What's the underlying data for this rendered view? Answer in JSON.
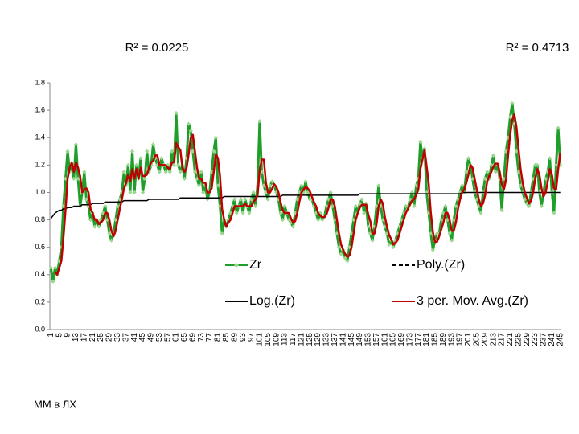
{
  "chart_data": {
    "type": "line",
    "annotations": [
      {
        "text": "R² = 0.0225"
      },
      {
        "text": "R² = 0.4713"
      }
    ],
    "footer": "ММ в ЛХ",
    "categories": [
      "1",
      null,
      null,
      null,
      "5",
      null,
      null,
      null,
      "9",
      null,
      null,
      null,
      "13",
      null,
      null,
      null,
      "17",
      null,
      null,
      null,
      "21",
      null,
      null,
      null,
      "25",
      null,
      null,
      null,
      "29",
      null,
      null,
      null,
      "33",
      null,
      null,
      null,
      "37",
      null,
      null,
      null,
      "41",
      null,
      null,
      null,
      "45",
      null,
      null,
      null,
      "49",
      null,
      null,
      null,
      "53",
      null,
      null,
      null,
      "57",
      null,
      null,
      null,
      "61",
      null,
      null,
      null,
      "65",
      null,
      null,
      null,
      "69",
      null,
      null,
      null,
      "73",
      null,
      null,
      null,
      "77",
      null,
      null,
      null,
      "81",
      null,
      null,
      null,
      "85",
      null,
      null,
      null,
      "89",
      null,
      null,
      null,
      "93",
      null,
      null,
      null,
      "97",
      null,
      null,
      null,
      "101",
      null,
      null,
      null,
      "105",
      null,
      null,
      null,
      "109",
      null,
      null,
      null,
      "113",
      null,
      null,
      null,
      "117",
      null,
      null,
      null,
      "121",
      null,
      null,
      null,
      "125",
      null,
      null,
      null,
      "129",
      null,
      null,
      null,
      "133",
      null,
      null,
      null,
      "137",
      null,
      null,
      null,
      "141",
      null,
      null,
      null,
      "145",
      null,
      null,
      null,
      "149",
      null,
      null,
      null,
      "153",
      null,
      null,
      null,
      "157",
      null,
      null,
      null,
      "161",
      null,
      null,
      null,
      "165",
      null,
      null,
      null,
      "169",
      null,
      null,
      null,
      "173",
      null,
      null,
      null,
      "177",
      null,
      null,
      null,
      "181",
      null,
      null,
      null,
      "185",
      null,
      null,
      null,
      "189",
      null,
      null,
      null,
      "193",
      null,
      null,
      null,
      "197",
      null,
      null,
      null,
      "201",
      null,
      null,
      null,
      "205",
      null,
      null,
      null,
      "209",
      null,
      null,
      null,
      "213",
      null,
      null,
      null,
      "217",
      null,
      null,
      null,
      "221",
      null,
      null,
      null,
      "225",
      null,
      null,
      null,
      "229",
      null,
      null,
      null,
      "233",
      null,
      null,
      null,
      "237",
      null,
      null,
      null,
      "241",
      null,
      null,
      null,
      "245"
    ],
    "series": [
      {
        "name": "Zr",
        "color": "#1f9e2a",
        "marker_color": "#9ad88e",
        "markers": true,
        "values": [
          0.45,
          0.35,
          0.45,
          0.4,
          0.5,
          0.6,
          0.9,
          1.1,
          1.3,
          1.15,
          1.2,
          1.1,
          1.35,
          1.1,
          0.9,
          1,
          1.15,
          0.95,
          0.9,
          0.8,
          0.85,
          0.75,
          0.8,
          0.75,
          0.8,
          0.85,
          0.9,
          0.8,
          0.7,
          0.65,
          0.7,
          0.8,
          0.9,
          0.95,
          1,
          1.15,
          1.05,
          1.2,
          1,
          1.3,
          1,
          1.2,
          1.1,
          1.25,
          1,
          1.1,
          1.3,
          1.15,
          1.2,
          1.35,
          1.25,
          1.2,
          1.15,
          1.25,
          1.2,
          1.15,
          1.2,
          1.15,
          1.3,
          1.2,
          1.58,
          1.2,
          1.15,
          1.2,
          1.1,
          1.25,
          1.5,
          1.45,
          1.3,
          1.15,
          1.1,
          1.05,
          1.15,
          1,
          1.05,
          0.95,
          1,
          1.15,
          1.3,
          1.4,
          1.05,
          0.9,
          0.7,
          0.8,
          0.75,
          0.8,
          0.85,
          0.9,
          0.95,
          0.85,
          0.9,
          0.95,
          0.85,
          0.95,
          0.9,
          0.85,
          0.95,
          1,
          0.9,
          1.05,
          1.52,
          1.15,
          1.05,
          1,
          0.95,
          1.05,
          1.08,
          1.05,
          1,
          0.95,
          0.85,
          0.8,
          0.9,
          0.85,
          0.8,
          0.78,
          0.75,
          0.85,
          0.95,
          1,
          1.05,
          1,
          1.08,
          1,
          0.95,
          0.95,
          0.9,
          0.85,
          0.8,
          0.85,
          0.8,
          0.82,
          0.9,
          0.95,
          1,
          0.9,
          0.8,
          0.7,
          0.6,
          0.55,
          0.58,
          0.52,
          0.5,
          0.6,
          0.7,
          0.8,
          0.9,
          0.85,
          0.92,
          0.95,
          0.85,
          0.92,
          0.75,
          0.7,
          0.65,
          0.75,
          0.9,
          1.05,
          0.9,
          0.8,
          0.75,
          0.7,
          0.62,
          0.65,
          0.6,
          0.65,
          0.7,
          0.75,
          0.8,
          0.85,
          0.9,
          0.88,
          0.95,
          1,
          0.9,
          1.05,
          1.1,
          1.37,
          1.25,
          1.32,
          1,
          0.85,
          0.7,
          0.58,
          0.65,
          0.7,
          0.7,
          0.8,
          0.85,
          0.9,
          0.8,
          0.7,
          0.65,
          0.8,
          0.9,
          0.95,
          1,
          1.05,
          1,
          1.15,
          1.25,
          1.2,
          1.1,
          1,
          0.95,
          0.9,
          0.85,
          1,
          1.1,
          1.15,
          1.1,
          1.2,
          1.27,
          1.15,
          1.2,
          1.1,
          0.87,
          1.1,
          1.3,
          1.4,
          1.55,
          1.65,
          1.5,
          1.3,
          1.15,
          1.05,
          1,
          0.95,
          0.92,
          0.9,
          1,
          1.1,
          1.2,
          1.2,
          1,
          0.9,
          1,
          1.1,
          1.15,
          1.25,
          1,
          0.85,
          1.2,
          1.47,
          1.2
        ]
      },
      {
        "name": "Poly.(Zr)",
        "color": "#000000",
        "dash": true
      },
      {
        "name": "Log.(Zr)",
        "color": "#000000",
        "values": [
          0.81,
          0.83,
          0.85,
          0.86,
          0.87,
          0.87,
          0.88,
          0.88,
          0.89,
          0.89,
          0.89,
          0.9,
          0.9,
          0.9,
          0.9,
          0.91,
          0.91,
          0.91,
          0.91,
          0.91,
          0.92,
          0.92,
          0.92,
          0.92,
          0.92,
          0.92,
          0.93,
          0.93,
          0.93,
          0.93,
          0.93,
          0.93,
          0.93,
          0.93,
          0.93,
          0.94,
          0.94,
          0.94,
          0.94,
          0.94,
          0.94,
          0.94,
          0.94,
          0.94,
          0.94,
          0.94,
          0.94,
          0.95,
          0.95,
          0.95,
          0.95,
          0.95,
          0.95,
          0.95,
          0.95,
          0.95,
          0.95,
          0.95,
          0.95,
          0.95,
          0.95,
          0.95,
          0.96,
          0.96,
          0.96,
          0.96,
          0.96,
          0.96,
          0.96,
          0.96,
          0.96,
          0.96,
          0.96,
          0.96,
          0.96,
          0.96,
          0.96,
          0.96,
          0.96,
          0.96,
          0.96,
          0.96,
          0.96,
          0.97,
          0.97,
          0.97,
          0.97,
          0.97,
          0.97,
          0.97,
          0.97,
          0.97,
          0.97,
          0.97,
          0.97,
          0.97,
          0.97,
          0.97,
          0.97,
          0.97,
          0.97,
          0.97,
          0.97,
          0.97,
          0.97,
          0.97,
          0.97,
          0.97,
          0.97,
          0.97,
          0.97,
          0.98,
          0.98,
          0.98,
          0.98,
          0.98,
          0.98,
          0.98,
          0.98,
          0.98,
          0.98,
          0.98,
          0.98,
          0.98,
          0.98,
          0.98,
          0.98,
          0.98,
          0.98,
          0.98,
          0.98,
          0.98,
          0.98,
          0.98,
          0.98,
          0.98,
          0.98,
          0.98,
          0.98,
          0.98,
          0.98,
          0.98,
          0.98,
          0.98,
          0.98,
          0.98,
          0.98,
          0.98,
          0.99,
          0.99,
          0.99,
          0.99,
          0.99,
          0.99,
          0.99,
          0.99,
          0.99,
          0.99,
          0.99,
          0.99,
          0.99,
          0.99,
          0.99,
          0.99,
          0.99,
          0.99,
          0.99,
          0.99,
          0.99,
          0.99,
          0.99,
          0.99,
          0.99,
          0.99,
          0.99,
          0.99,
          0.99,
          0.99,
          0.99,
          0.99,
          0.99,
          0.99,
          0.99,
          0.99,
          0.99,
          0.99,
          0.99,
          0.99,
          0.99,
          0.99,
          0.99,
          0.99,
          0.99,
          0.99,
          0.99,
          0.99,
          0.99,
          1,
          1,
          1,
          1,
          1,
          1,
          1,
          1,
          1,
          1,
          1,
          1,
          1,
          1,
          1,
          1,
          1,
          1,
          1,
          1,
          1,
          1,
          1,
          1,
          1,
          1,
          1,
          1,
          1,
          1,
          1,
          1,
          1,
          1,
          1,
          1,
          1,
          1,
          1,
          1,
          1,
          1,
          1,
          1,
          1,
          1,
          1,
          1
        ]
      },
      {
        "name": "3 per. Mov. Avg.(Zr)",
        "color": "#c00000",
        "values": [
          null,
          null,
          0.42,
          0.4,
          0.45,
          0.5,
          0.67,
          0.87,
          1.1,
          1.18,
          1.22,
          1.15,
          1.22,
          1.18,
          1.12,
          1,
          1.02,
          1.03,
          1,
          0.88,
          0.85,
          0.8,
          0.8,
          0.77,
          0.78,
          0.8,
          0.85,
          0.85,
          0.8,
          0.72,
          0.68,
          0.72,
          0.8,
          0.88,
          0.95,
          1.03,
          1.07,
          1.13,
          1.08,
          1.17,
          1.1,
          1.17,
          1.1,
          1.18,
          1.12,
          1.12,
          1.13,
          1.18,
          1.22,
          1.23,
          1.27,
          1.27,
          1.2,
          1.2,
          1.2,
          1.2,
          1.18,
          1.17,
          1.22,
          1.22,
          1.36,
          1.33,
          1.31,
          1.18,
          1.15,
          1.18,
          1.28,
          1.4,
          1.42,
          1.3,
          1.18,
          1.1,
          1.1,
          1.07,
          1.07,
          1,
          1,
          1.03,
          1.15,
          1.28,
          1.25,
          1.12,
          0.88,
          0.8,
          0.75,
          0.78,
          0.8,
          0.85,
          0.9,
          0.9,
          0.9,
          0.9,
          0.9,
          0.92,
          0.9,
          0.9,
          0.9,
          0.93,
          0.95,
          0.98,
          1.16,
          1.24,
          1.24,
          1.07,
          1,
          1,
          1.03,
          1.06,
          1.04,
          1,
          0.93,
          0.87,
          0.85,
          0.85,
          0.85,
          0.81,
          0.78,
          0.79,
          0.85,
          0.93,
          1,
          1.02,
          1.04,
          1.03,
          1.01,
          0.97,
          0.93,
          0.9,
          0.85,
          0.83,
          0.82,
          0.82,
          0.84,
          0.89,
          0.95,
          0.95,
          0.9,
          0.8,
          0.7,
          0.62,
          0.58,
          0.55,
          0.53,
          0.54,
          0.6,
          0.7,
          0.8,
          0.85,
          0.89,
          0.91,
          0.91,
          0.91,
          0.84,
          0.79,
          0.7,
          0.7,
          0.77,
          0.9,
          0.95,
          0.92,
          0.82,
          0.75,
          0.69,
          0.66,
          0.62,
          0.63,
          0.65,
          0.7,
          0.75,
          0.8,
          0.85,
          0.88,
          0.91,
          0.94,
          0.95,
          0.98,
          1.02,
          1.17,
          1.24,
          1.31,
          1.19,
          1.06,
          0.85,
          0.71,
          0.64,
          0.64,
          0.68,
          0.73,
          0.78,
          0.85,
          0.85,
          0.8,
          0.72,
          0.72,
          0.78,
          0.88,
          0.95,
          1,
          1.02,
          1.07,
          1.13,
          1.2,
          1.18,
          1.1,
          1.02,
          0.95,
          0.9,
          0.92,
          0.98,
          1.08,
          1.12,
          1.15,
          1.19,
          1.21,
          1.21,
          1.15,
          1.06,
          1.02,
          1.09,
          1.27,
          1.42,
          1.53,
          1.57,
          1.48,
          1.32,
          1.17,
          1.07,
          1,
          0.96,
          0.92,
          0.94,
          1,
          1.1,
          1.17,
          1.13,
          1.03,
          0.97,
          1,
          1.08,
          1.17,
          1.13,
          1.03,
          1.02,
          1.17,
          1.29
        ]
      }
    ],
    "ylim": [
      0,
      1.8
    ],
    "yticks": [
      {
        "value": 0,
        "label": "0.0"
      },
      0.2,
      0.4,
      0.6,
      0.8,
      {
        "value": 1,
        "label": "1.0"
      },
      1.2,
      1.4,
      1.6,
      1.8
    ],
    "grid": false
  }
}
